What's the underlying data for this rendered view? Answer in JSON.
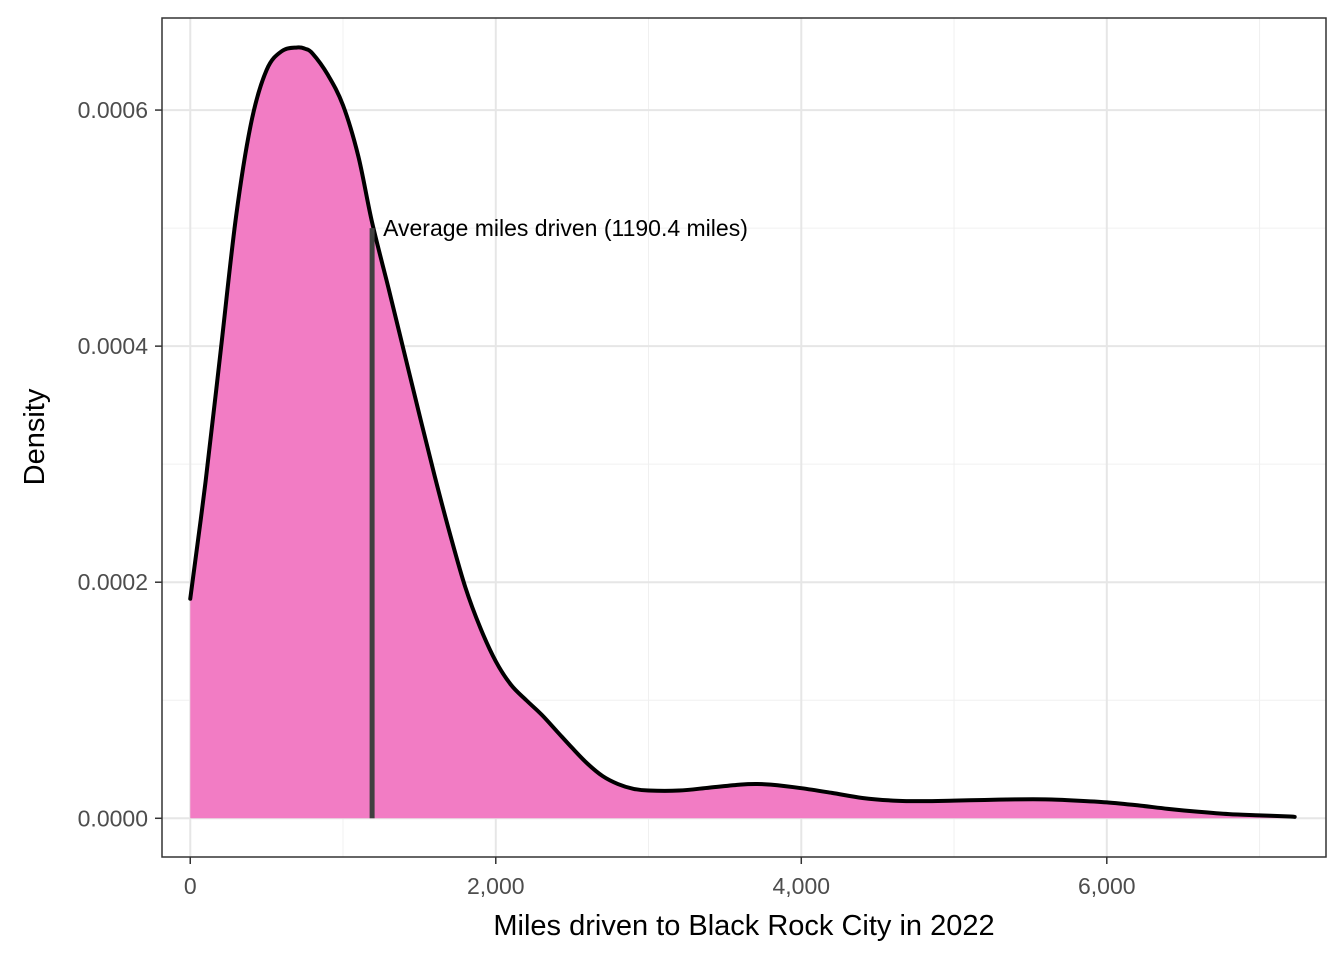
{
  "chart_data": {
    "type": "area",
    "xlabel": "Miles driven to Black Rock City in 2022",
    "ylabel": "Density",
    "xlim": [
      -185,
      7435
    ],
    "ylim": [
      -3.28e-05,
      0.000678
    ],
    "x_ticks": [
      {
        "value": 0,
        "label": "0"
      },
      {
        "value": 2000,
        "label": "2,000"
      },
      {
        "value": 4000,
        "label": "4,000"
      },
      {
        "value": 6000,
        "label": "6,000"
      }
    ],
    "y_ticks": [
      {
        "value": 0,
        "label": "0.0000"
      },
      {
        "value": 0.0002,
        "label": "0.0002"
      },
      {
        "value": 0.0004,
        "label": "0.0004"
      },
      {
        "value": 0.0006,
        "label": "0.0006"
      }
    ],
    "grid": true,
    "fill_color": "#f27cc4",
    "line_color": "#000000",
    "mean_line_color": "#404040",
    "series": [
      {
        "x": [
          0,
          100,
          200,
          300,
          400,
          500,
          600,
          700,
          750,
          800,
          900,
          1000,
          1100,
          1190,
          1300,
          1400,
          1500,
          1600,
          1700,
          1800,
          1900,
          2000,
          2100,
          2200,
          2300,
          2400,
          2500,
          2600,
          2700,
          2800,
          2900,
          3000,
          3200,
          3400,
          3600,
          3700,
          3800,
          4000,
          4200,
          4400,
          4600,
          4800,
          5000,
          5200,
          5400,
          5600,
          5800,
          6000,
          6200,
          6400,
          6600,
          6800,
          7000,
          7200,
          7230
        ],
        "y": [
          0.000186,
          0.000285,
          0.000397,
          0.00051,
          0.00059,
          0.000634,
          0.00065,
          0.000653,
          0.000652,
          0.000648,
          0.00063,
          0.000604,
          0.000561,
          0.000505,
          0.000448,
          0.000395,
          0.000342,
          0.00029,
          0.000241,
          0.000196,
          0.000161,
          0.000133,
          0.000113,
          0.0001,
          8.78e-05,
          7.37e-05,
          5.96e-05,
          4.63e-05,
          3.57e-05,
          2.9e-05,
          2.5e-05,
          2.35e-05,
          2.35e-05,
          2.6e-05,
          2.85e-05,
          2.9e-05,
          2.85e-05,
          2.55e-05,
          2.15e-05,
          1.72e-05,
          1.5e-05,
          1.45e-05,
          1.5e-05,
          1.55e-05,
          1.6e-05,
          1.6e-05,
          1.5e-05,
          1.35e-05,
          1.1e-05,
          8e-06,
          5.5e-06,
          3.5e-06,
          2.5e-06,
          1.5e-06,
          1.2e-06
        ]
      }
    ],
    "mean_line": {
      "x": 1190.4,
      "y_top": 0.0005,
      "label": "Average miles driven (1190.4 miles)"
    }
  }
}
